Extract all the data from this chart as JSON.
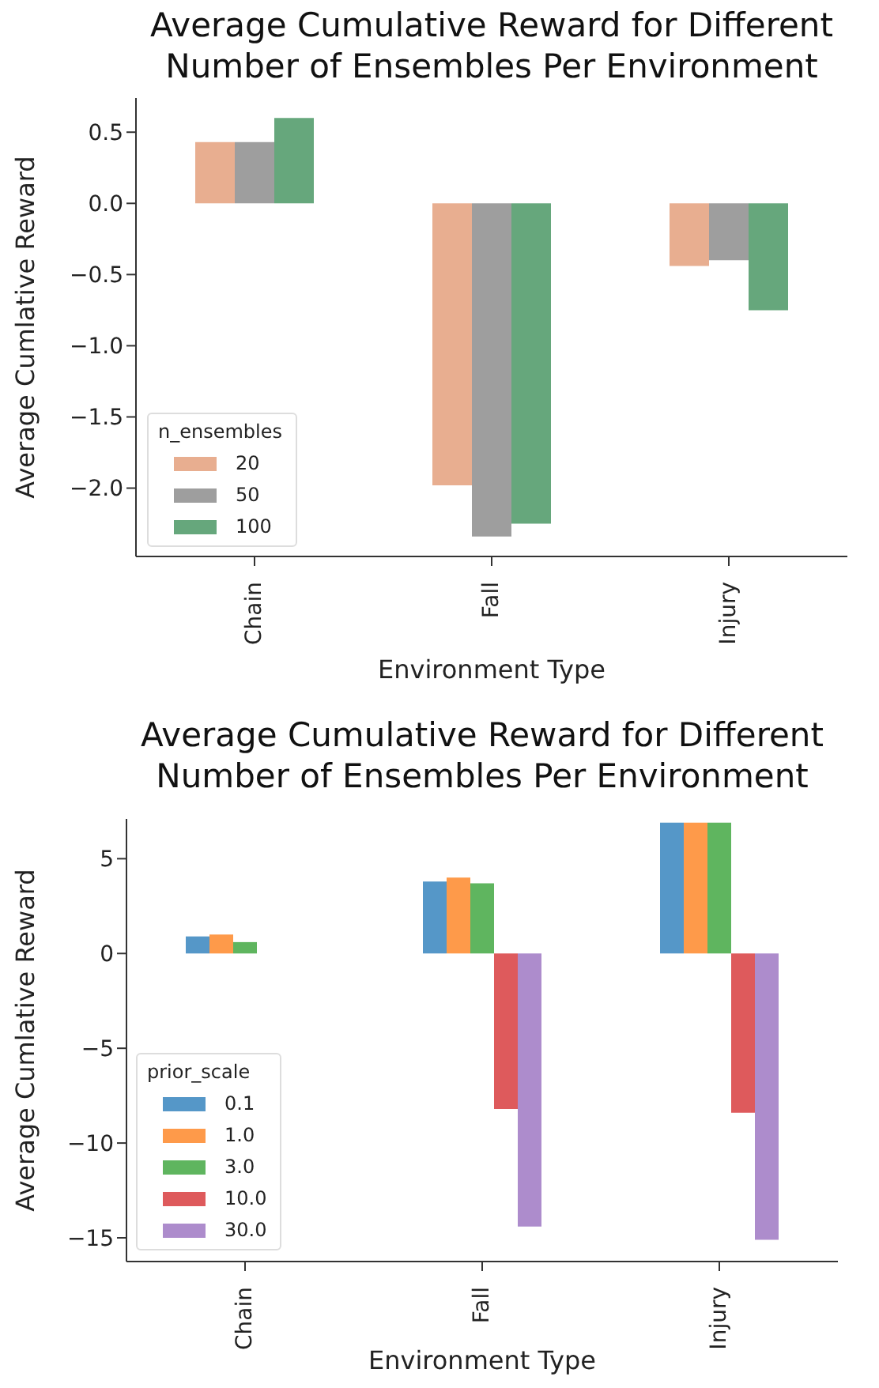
{
  "chart_data": [
    {
      "type": "bar",
      "title": "Average Cumulative Reward for Different\nNumber of Ensembles Per Environment",
      "xlabel": "Environment Type",
      "ylabel": "Average Cumlative Reward",
      "legend_title": "n_ensembles",
      "legend": "bottom left",
      "grid": false,
      "categories": [
        "Chain",
        "Fall",
        "Injury"
      ],
      "series": [
        {
          "name": "20",
          "color": "#e8ae90",
          "values": [
            0.43,
            -1.98,
            -0.44
          ]
        },
        {
          "name": "50",
          "color": "#9e9e9e",
          "values": [
            0.43,
            -2.34,
            -0.4
          ]
        },
        {
          "name": "100",
          "color": "#66a77c",
          "values": [
            0.6,
            -2.25,
            -0.75
          ]
        }
      ],
      "ylim": [
        -2.48,
        0.74
      ],
      "yticks": [
        {
          "value": -2.0,
          "label": "−2.0"
        },
        {
          "value": -1.5,
          "label": "−1.5"
        },
        {
          "value": -1.0,
          "label": "−1.0"
        },
        {
          "value": -0.5,
          "label": "−0.5"
        },
        {
          "value": 0.0,
          "label": "0.0"
        },
        {
          "value": 0.5,
          "label": "0.5"
        }
      ]
    },
    {
      "type": "bar",
      "title": "Average Cumulative Reward for Different\nNumber of Ensembles Per Environment",
      "xlabel": "Environment Type",
      "ylabel": "Average Cumlative Reward",
      "legend_title": "prior_scale",
      "legend": "bottom left",
      "grid": false,
      "categories": [
        "Chain",
        "Fall",
        "Injury"
      ],
      "series": [
        {
          "name": "0.1",
          "color": "#5597c8",
          "values": [
            0.9,
            3.8,
            6.9
          ]
        },
        {
          "name": "1.0",
          "color": "#fe9a4a",
          "values": [
            1.0,
            4.0,
            6.9
          ]
        },
        {
          "name": "3.0",
          "color": "#5fb55f",
          "values": [
            0.6,
            3.7,
            6.9
          ]
        },
        {
          "name": "10.0",
          "color": "#de5a5c",
          "values": [
            0,
            -8.2,
            -8.4
          ]
        },
        {
          "name": "30.0",
          "color": "#ad8ccc",
          "values": [
            0,
            -14.4,
            -15.1
          ]
        }
      ],
      "ylim": [
        -16.25,
        7.1
      ],
      "yticks": [
        {
          "value": -15,
          "label": "−15"
        },
        {
          "value": -10,
          "label": "−10"
        },
        {
          "value": -5,
          "label": "−5"
        },
        0,
        5
      ]
    }
  ]
}
